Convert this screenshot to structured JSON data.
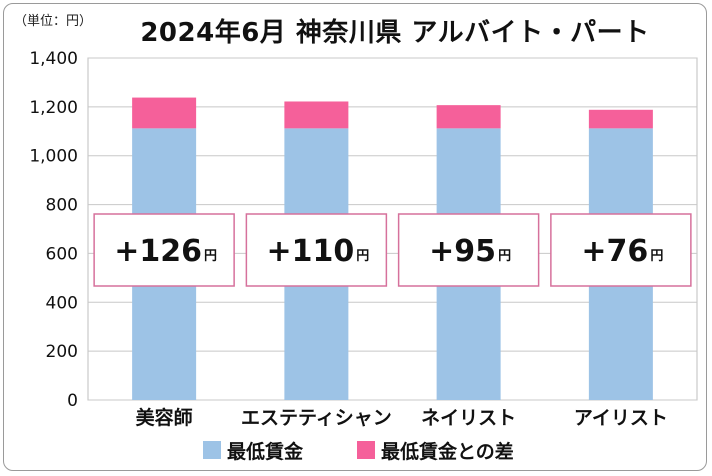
{
  "unit_label": "（単位：円）",
  "chart_data": {
    "type": "bar",
    "stacked": true,
    "title": "2024年6月 神奈川県 アルバイト・パート",
    "categories": [
      "美容師",
      "エステティシャン",
      "ネイリスト",
      "アイリスト"
    ],
    "series": [
      {
        "name": "最低賃金",
        "values": [
          1112,
          1112,
          1112,
          1112
        ],
        "color": "#9dc3e6"
      },
      {
        "name": "最低賃金との差",
        "values": [
          126,
          110,
          95,
          76
        ],
        "color": "#f5609a"
      }
    ],
    "callouts": [
      {
        "text": "+126",
        "unit": "円"
      },
      {
        "text": "+110",
        "unit": "円"
      },
      {
        "text": "+95",
        "unit": "円"
      },
      {
        "text": "+76",
        "unit": "円"
      }
    ],
    "callout_border_color": "#d6719c",
    "ylim": [
      0,
      1400
    ],
    "yticks": [
      "0",
      "200",
      "400",
      "600",
      "800",
      "1,000",
      "1,200",
      "1,400"
    ],
    "grid": true,
    "legend_position": "bottom"
  }
}
